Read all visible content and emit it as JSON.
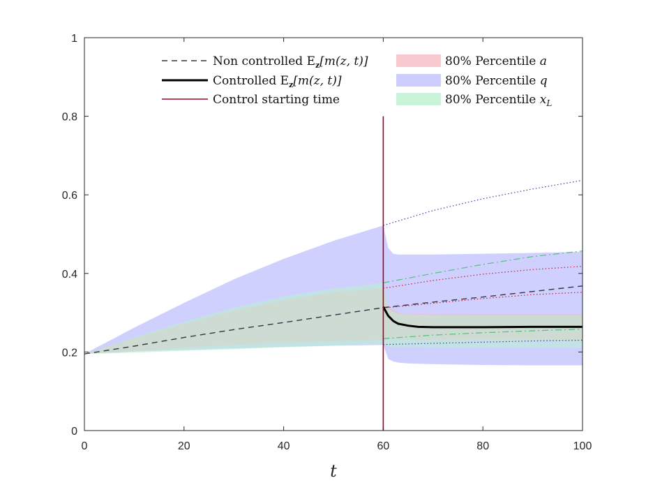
{
  "chart_data": {
    "type": "area",
    "xlabel": "t",
    "ylabel": "",
    "xlim": [
      0,
      100
    ],
    "ylim": [
      0,
      1
    ],
    "xticks": [
      0,
      20,
      40,
      60,
      80,
      100
    ],
    "yticks": [
      0,
      0.2,
      0.4,
      0.6,
      0.8,
      1
    ],
    "xtick_labels": [
      "0",
      "20",
      "40",
      "60",
      "80",
      "100"
    ],
    "ytick_labels": [
      "0",
      "0.2",
      "0.4",
      "0.6",
      "0.8",
      "1"
    ],
    "grid": false,
    "legend_position": "top",
    "control_start": 60,
    "colors": {
      "non_controlled": "#333344",
      "controlled": "#000000",
      "control_line": "#a00020",
      "band_a": "#f7b7c0",
      "band_q": "#c8c8ff",
      "band_xL": "#b8f0cc"
    },
    "series": [
      {
        "name": "Non controlled E_z[m(z,t)]",
        "legend_label": "Non controlled E",
        "legend_math": "[m(z, t)]",
        "style": "dashed",
        "x": [
          0,
          10,
          20,
          30,
          40,
          50,
          60,
          70,
          80,
          90,
          100
        ],
        "values": [
          0.195,
          0.215,
          0.237,
          0.257,
          0.275,
          0.294,
          0.313,
          0.327,
          0.34,
          0.354,
          0.368
        ]
      },
      {
        "name": "Controlled E_z[m(z,t)]",
        "legend_label": "Controlled E",
        "legend_math": "[m(z, t)]",
        "style": "solid",
        "x": [
          60,
          61,
          62,
          63,
          65,
          67,
          70,
          75,
          80,
          90,
          100
        ],
        "values": [
          0.315,
          0.292,
          0.279,
          0.272,
          0.267,
          0.264,
          0.263,
          0.263,
          0.263,
          0.264,
          0.264
        ]
      }
    ],
    "control_legend": "Control starting time",
    "bands": [
      {
        "name": "80% Percentile a",
        "legend_label": "80% Percentile",
        "legend_var": "a",
        "x": [
          0,
          10,
          20,
          30,
          40,
          50,
          60,
          61,
          63,
          65,
          70,
          80,
          90,
          100
        ],
        "upper": [
          0.195,
          0.235,
          0.272,
          0.305,
          0.332,
          0.352,
          0.362,
          0.315,
          0.3,
          0.297,
          0.296,
          0.296,
          0.296,
          0.296
        ],
        "lower": [
          0.195,
          0.202,
          0.211,
          0.218,
          0.224,
          0.228,
          0.23,
          0.232,
          0.232,
          0.231,
          0.231,
          0.231,
          0.231,
          0.231
        ]
      },
      {
        "name": "80% Percentile q",
        "legend_label": "80% Percentile",
        "legend_var": "q",
        "x": [
          0,
          10,
          20,
          30,
          40,
          50,
          60,
          61,
          62,
          63,
          65,
          70,
          80,
          90,
          100
        ],
        "upper": [
          0.195,
          0.262,
          0.325,
          0.385,
          0.437,
          0.483,
          0.522,
          0.465,
          0.45,
          0.448,
          0.448,
          0.448,
          0.45,
          0.452,
          0.455
        ],
        "lower": [
          0.195,
          0.201,
          0.205,
          0.209,
          0.213,
          0.216,
          0.218,
          0.182,
          0.176,
          0.173,
          0.171,
          0.169,
          0.167,
          0.166,
          0.166
        ]
      },
      {
        "name": "80% Percentile x_L",
        "legend_label": "80% Percentile",
        "legend_var": "x",
        "legend_sub": "L",
        "x": [
          0,
          10,
          20,
          30,
          40,
          50,
          60,
          61,
          63,
          65,
          70,
          80,
          90,
          100
        ],
        "upper": [
          0.195,
          0.237,
          0.277,
          0.313,
          0.341,
          0.362,
          0.376,
          0.31,
          0.298,
          0.296,
          0.294,
          0.293,
          0.293,
          0.293
        ],
        "lower": [
          0.195,
          0.198,
          0.203,
          0.207,
          0.212,
          0.216,
          0.22,
          0.214,
          0.212,
          0.212,
          0.211,
          0.211,
          0.211,
          0.211
        ]
      }
    ],
    "uncontrolled_bounds": [
      {
        "name": "q upper (non controlled)",
        "color": "#3a3aa8",
        "style": "dotted",
        "x": [
          60,
          70,
          80,
          90,
          100
        ],
        "values": [
          0.522,
          0.56,
          0.59,
          0.615,
          0.637
        ]
      },
      {
        "name": "x_L upper (non controlled)",
        "color": "#4ec27a",
        "style": "dashdot",
        "x": [
          60,
          70,
          80,
          90,
          100
        ],
        "values": [
          0.376,
          0.4,
          0.423,
          0.443,
          0.457
        ]
      },
      {
        "name": "a upper (non controlled)",
        "color": "#c0203a",
        "style": "dotted",
        "x": [
          60,
          70,
          80,
          90,
          100
        ],
        "values": [
          0.362,
          0.382,
          0.398,
          0.41,
          0.418
        ]
      },
      {
        "name": "a lower (non controlled)",
        "color": "#c0203a",
        "style": "dotted",
        "x": [
          60,
          70,
          80,
          90,
          100
        ],
        "values": [
          0.312,
          0.324,
          0.336,
          0.346,
          0.352
        ]
      },
      {
        "name": "x_L lower (non controlled)",
        "color": "#4ec27a",
        "style": "dashdot",
        "x": [
          60,
          70,
          80,
          90,
          100
        ],
        "values": [
          0.234,
          0.243,
          0.249,
          0.254,
          0.258
        ]
      },
      {
        "name": "q lower (non controlled)",
        "color": "#3a3aa8",
        "style": "dotted",
        "x": [
          60,
          70,
          80,
          90,
          100
        ],
        "values": [
          0.219,
          0.222,
          0.225,
          0.228,
          0.23
        ]
      }
    ],
    "control_line_ymax": 0.8
  }
}
